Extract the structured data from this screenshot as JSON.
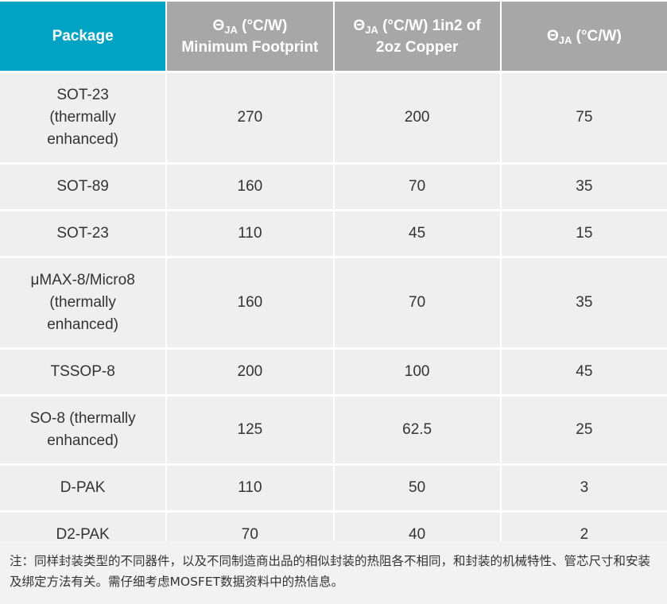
{
  "table": {
    "header": [
      {
        "text": "Package"
      },
      {
        "prefix": "Θ",
        "subscript": "JA",
        "suffix": " (°C/W)",
        "line2": "Minimum Footprint"
      },
      {
        "prefix": "Θ",
        "subscript": "JA",
        "suffix": " (°C/W) 1in2 of",
        "line2": "2oz Copper"
      },
      {
        "prefix": "Θ",
        "subscript": "JA",
        "suffix": " (°C/W)"
      }
    ],
    "rows": [
      [
        "SOT-23 (thermally enhanced)",
        270,
        200,
        75
      ],
      [
        "SOT-89",
        160,
        70,
        35
      ],
      [
        "SOT-23",
        110,
        45,
        15
      ],
      [
        "μMAX-8/Micro8 (thermally enhanced)",
        160,
        70,
        35
      ],
      [
        "TSSOP-8",
        200,
        100,
        45
      ],
      [
        "SO-8 (thermally enhanced)",
        125,
        62.5,
        25
      ],
      [
        "D-PAK",
        110,
        50,
        3
      ],
      [
        "D2-PAK",
        70,
        40,
        2
      ]
    ]
  },
  "note": "注：同样封装类型的不同器件，以及不同制造商出品的相似封装的热阻各不相同，和封装的机械特性、管芯尺寸和安装及绑定方法有关。需仔细考虑MOSFET数据资料中的热信息。"
}
